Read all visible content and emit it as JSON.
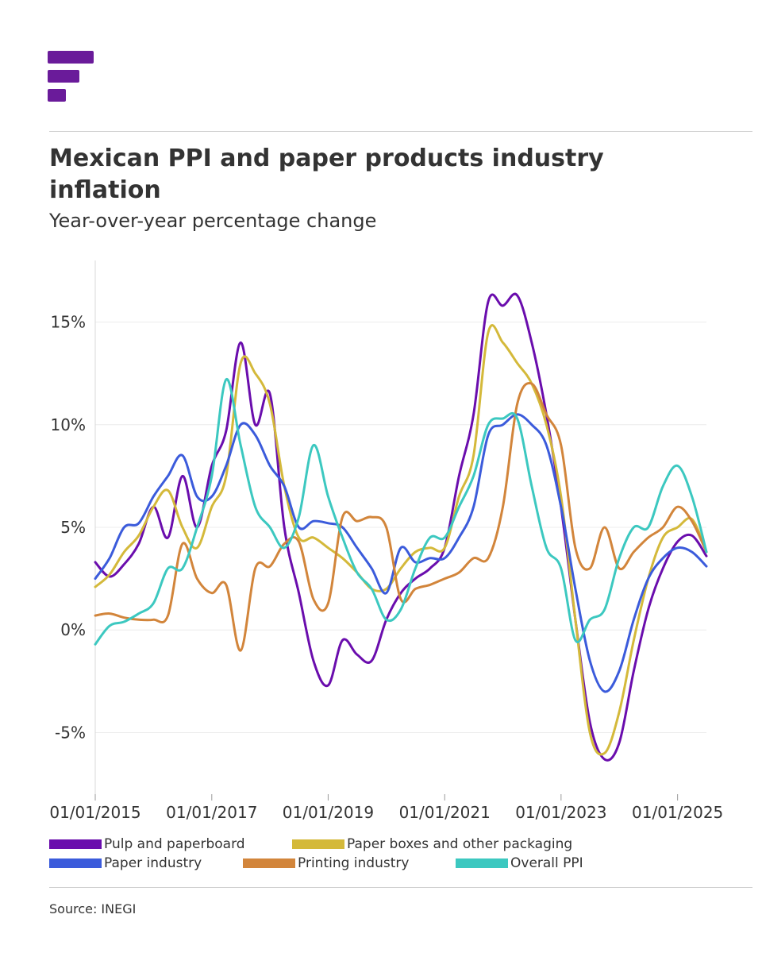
{
  "title": "Mexican PPI and paper products industry inflation",
  "subtitle": "Year-over-year percentage change",
  "source": "Source: INEGI",
  "brand_color": "#6a1b9a",
  "chart_data": {
    "type": "line",
    "title": "Mexican PPI and paper products industry inflation",
    "subtitle": "Year-over-year percentage change",
    "xlabel": "",
    "ylabel": "",
    "x_ticks": [
      "01/01/2015",
      "01/01/2017",
      "01/01/2019",
      "01/01/2021",
      "01/01/2023",
      "01/01/2025"
    ],
    "y_ticks": [
      "15%",
      "10%",
      "5%",
      "0%",
      "-5%"
    ],
    "y_tick_values": [
      15,
      10,
      5,
      0,
      -5
    ],
    "xlim": [
      "2015-01-01",
      "2025-07-01"
    ],
    "ylim": [
      -8,
      18
    ],
    "grid": true,
    "legend_position": "bottom",
    "series": [
      {
        "name": "Pulp and paperboard",
        "color": "#6a0dad",
        "points": [
          [
            "2015-01-01",
            3.3
          ],
          [
            "2015-04-01",
            2.6
          ],
          [
            "2015-07-01",
            3.2
          ],
          [
            "2015-10-01",
            4.2
          ],
          [
            "2016-01-01",
            6.0
          ],
          [
            "2016-04-01",
            4.5
          ],
          [
            "2016-07-01",
            7.5
          ],
          [
            "2016-10-01",
            5.0
          ],
          [
            "2017-01-01",
            8.0
          ],
          [
            "2017-04-01",
            9.7
          ],
          [
            "2017-07-01",
            14.0
          ],
          [
            "2017-10-01",
            10.0
          ],
          [
            "2018-01-01",
            11.5
          ],
          [
            "2018-04-01",
            5.0
          ],
          [
            "2018-07-01",
            1.8
          ],
          [
            "2018-10-01",
            -1.5
          ],
          [
            "2019-01-01",
            -2.7
          ],
          [
            "2019-04-01",
            -0.5
          ],
          [
            "2019-07-01",
            -1.2
          ],
          [
            "2019-10-01",
            -1.5
          ],
          [
            "2020-01-01",
            0.5
          ],
          [
            "2020-04-01",
            1.8
          ],
          [
            "2020-07-01",
            2.5
          ],
          [
            "2020-10-01",
            3.0
          ],
          [
            "2021-01-01",
            4.0
          ],
          [
            "2021-04-01",
            7.5
          ],
          [
            "2021-07-01",
            10.5
          ],
          [
            "2021-10-01",
            16.0
          ],
          [
            "2022-01-01",
            15.8
          ],
          [
            "2022-04-01",
            16.3
          ],
          [
            "2022-07-01",
            14.0
          ],
          [
            "2022-10-01",
            10.5
          ],
          [
            "2023-01-01",
            6.0
          ],
          [
            "2023-04-01",
            0.5
          ],
          [
            "2023-07-01",
            -4.5
          ],
          [
            "2023-10-01",
            -6.3
          ],
          [
            "2024-01-01",
            -5.5
          ],
          [
            "2024-04-01",
            -2.0
          ],
          [
            "2024-07-01",
            1.0
          ],
          [
            "2024-10-01",
            3.0
          ],
          [
            "2025-01-01",
            4.3
          ],
          [
            "2025-04-01",
            4.6
          ],
          [
            "2025-07-01",
            3.6
          ]
        ]
      },
      {
        "name": "Paper boxes and other packaging",
        "color": "#d4b93a",
        "points": [
          [
            "2015-01-01",
            2.1
          ],
          [
            "2015-04-01",
            2.7
          ],
          [
            "2015-07-01",
            3.8
          ],
          [
            "2015-10-01",
            4.6
          ],
          [
            "2016-01-01",
            6.0
          ],
          [
            "2016-04-01",
            6.8
          ],
          [
            "2016-07-01",
            5.0
          ],
          [
            "2016-10-01",
            4.0
          ],
          [
            "2017-01-01",
            6.0
          ],
          [
            "2017-04-01",
            7.5
          ],
          [
            "2017-07-01",
            13.0
          ],
          [
            "2017-10-01",
            12.5
          ],
          [
            "2018-01-01",
            11.0
          ],
          [
            "2018-04-01",
            7.0
          ],
          [
            "2018-07-01",
            4.5
          ],
          [
            "2018-10-01",
            4.5
          ],
          [
            "2019-01-01",
            4.0
          ],
          [
            "2019-04-01",
            3.5
          ],
          [
            "2019-07-01",
            2.8
          ],
          [
            "2019-10-01",
            2.0
          ],
          [
            "2020-01-01",
            2.0
          ],
          [
            "2020-04-01",
            3.0
          ],
          [
            "2020-07-01",
            3.8
          ],
          [
            "2020-10-01",
            4.0
          ],
          [
            "2021-01-01",
            4.0
          ],
          [
            "2021-04-01",
            6.5
          ],
          [
            "2021-07-01",
            8.5
          ],
          [
            "2021-10-01",
            14.5
          ],
          [
            "2022-01-01",
            14.0
          ],
          [
            "2022-04-01",
            13.0
          ],
          [
            "2022-07-01",
            12.0
          ],
          [
            "2022-10-01",
            10.0
          ],
          [
            "2023-01-01",
            6.5
          ],
          [
            "2023-04-01",
            0.5
          ],
          [
            "2023-07-01",
            -5.0
          ],
          [
            "2023-10-01",
            -6.0
          ],
          [
            "2024-01-01",
            -4.0
          ],
          [
            "2024-04-01",
            -0.5
          ],
          [
            "2024-07-01",
            2.5
          ],
          [
            "2024-10-01",
            4.5
          ],
          [
            "2025-01-01",
            5.0
          ],
          [
            "2025-04-01",
            5.4
          ],
          [
            "2025-07-01",
            3.8
          ]
        ]
      },
      {
        "name": "Paper industry",
        "color": "#3b5bdb",
        "points": [
          [
            "2015-01-01",
            2.5
          ],
          [
            "2015-04-01",
            3.5
          ],
          [
            "2015-07-01",
            5.0
          ],
          [
            "2015-10-01",
            5.2
          ],
          [
            "2016-01-01",
            6.5
          ],
          [
            "2016-04-01",
            7.5
          ],
          [
            "2016-07-01",
            8.5
          ],
          [
            "2016-10-01",
            6.5
          ],
          [
            "2017-01-01",
            6.5
          ],
          [
            "2017-04-01",
            8.0
          ],
          [
            "2017-07-01",
            10.0
          ],
          [
            "2017-10-01",
            9.5
          ],
          [
            "2018-01-01",
            8.0
          ],
          [
            "2018-04-01",
            7.0
          ],
          [
            "2018-07-01",
            5.0
          ],
          [
            "2018-10-01",
            5.3
          ],
          [
            "2019-01-01",
            5.2
          ],
          [
            "2019-04-01",
            5.0
          ],
          [
            "2019-07-01",
            4.0
          ],
          [
            "2019-10-01",
            3.0
          ],
          [
            "2020-01-01",
            1.8
          ],
          [
            "2020-04-01",
            4.0
          ],
          [
            "2020-07-01",
            3.3
          ],
          [
            "2020-10-01",
            3.5
          ],
          [
            "2021-01-01",
            3.5
          ],
          [
            "2021-04-01",
            4.5
          ],
          [
            "2021-07-01",
            6.0
          ],
          [
            "2021-10-01",
            9.5
          ],
          [
            "2022-01-01",
            10.0
          ],
          [
            "2022-04-01",
            10.5
          ],
          [
            "2022-07-01",
            10.0
          ],
          [
            "2022-10-01",
            9.0
          ],
          [
            "2023-01-01",
            6.0
          ],
          [
            "2023-04-01",
            2.0
          ],
          [
            "2023-07-01",
            -1.5
          ],
          [
            "2023-10-01",
            -3.0
          ],
          [
            "2024-01-01",
            -2.0
          ],
          [
            "2024-04-01",
            0.5
          ],
          [
            "2024-07-01",
            2.5
          ],
          [
            "2024-10-01",
            3.5
          ],
          [
            "2025-01-01",
            4.0
          ],
          [
            "2025-04-01",
            3.8
          ],
          [
            "2025-07-01",
            3.1
          ]
        ]
      },
      {
        "name": "Printing industry",
        "color": "#d2853b",
        "points": [
          [
            "2015-01-01",
            0.7
          ],
          [
            "2015-04-01",
            0.8
          ],
          [
            "2015-07-01",
            0.6
          ],
          [
            "2015-10-01",
            0.5
          ],
          [
            "2016-01-01",
            0.5
          ],
          [
            "2016-04-01",
            0.7
          ],
          [
            "2016-07-01",
            4.2
          ],
          [
            "2016-10-01",
            2.5
          ],
          [
            "2017-01-01",
            1.8
          ],
          [
            "2017-04-01",
            2.2
          ],
          [
            "2017-07-01",
            -1.0
          ],
          [
            "2017-10-01",
            3.0
          ],
          [
            "2018-01-01",
            3.1
          ],
          [
            "2018-04-01",
            4.2
          ],
          [
            "2018-07-01",
            4.3
          ],
          [
            "2018-10-01",
            1.5
          ],
          [
            "2019-01-01",
            1.3
          ],
          [
            "2019-04-01",
            5.5
          ],
          [
            "2019-07-01",
            5.3
          ],
          [
            "2019-10-01",
            5.5
          ],
          [
            "2020-01-01",
            5.0
          ],
          [
            "2020-04-01",
            1.5
          ],
          [
            "2020-07-01",
            2.0
          ],
          [
            "2020-10-01",
            2.2
          ],
          [
            "2021-01-01",
            2.5
          ],
          [
            "2021-04-01",
            2.8
          ],
          [
            "2021-07-01",
            3.5
          ],
          [
            "2021-10-01",
            3.5
          ],
          [
            "2022-01-01",
            6.0
          ],
          [
            "2022-04-01",
            11.0
          ],
          [
            "2022-07-01",
            12.0
          ],
          [
            "2022-10-01",
            10.5
          ],
          [
            "2023-01-01",
            9.0
          ],
          [
            "2023-04-01",
            4.0
          ],
          [
            "2023-07-01",
            3.0
          ],
          [
            "2023-10-01",
            5.0
          ],
          [
            "2024-01-01",
            3.0
          ],
          [
            "2024-04-01",
            3.8
          ],
          [
            "2024-07-01",
            4.5
          ],
          [
            "2024-10-01",
            5.0
          ],
          [
            "2025-01-01",
            6.0
          ],
          [
            "2025-04-01",
            5.3
          ],
          [
            "2025-07-01",
            3.8
          ]
        ]
      },
      {
        "name": "Overall PPI",
        "color": "#3cc8c0",
        "points": [
          [
            "2015-01-01",
            -0.7
          ],
          [
            "2015-04-01",
            0.2
          ],
          [
            "2015-07-01",
            0.4
          ],
          [
            "2015-10-01",
            0.8
          ],
          [
            "2016-01-01",
            1.3
          ],
          [
            "2016-04-01",
            3.0
          ],
          [
            "2016-07-01",
            3.0
          ],
          [
            "2016-10-01",
            5.0
          ],
          [
            "2017-01-01",
            7.5
          ],
          [
            "2017-04-01",
            12.2
          ],
          [
            "2017-07-01",
            9.0
          ],
          [
            "2017-10-01",
            6.0
          ],
          [
            "2018-01-01",
            5.0
          ],
          [
            "2018-04-01",
            4.0
          ],
          [
            "2018-07-01",
            5.5
          ],
          [
            "2018-10-01",
            9.0
          ],
          [
            "2019-01-01",
            6.5
          ],
          [
            "2019-04-01",
            4.5
          ],
          [
            "2019-07-01",
            2.8
          ],
          [
            "2019-10-01",
            2.0
          ],
          [
            "2020-01-01",
            0.5
          ],
          [
            "2020-04-01",
            1.0
          ],
          [
            "2020-07-01",
            3.0
          ],
          [
            "2020-10-01",
            4.5
          ],
          [
            "2021-01-01",
            4.5
          ],
          [
            "2021-04-01",
            6.0
          ],
          [
            "2021-07-01",
            7.5
          ],
          [
            "2021-10-01",
            10.0
          ],
          [
            "2022-01-01",
            10.3
          ],
          [
            "2022-04-01",
            10.3
          ],
          [
            "2022-07-01",
            7.0
          ],
          [
            "2022-10-01",
            4.0
          ],
          [
            "2023-01-01",
            3.0
          ],
          [
            "2023-04-01",
            -0.5
          ],
          [
            "2023-07-01",
            0.5
          ],
          [
            "2023-10-01",
            1.0
          ],
          [
            "2024-01-01",
            3.5
          ],
          [
            "2024-04-01",
            5.0
          ],
          [
            "2024-07-01",
            5.0
          ],
          [
            "2024-10-01",
            7.0
          ],
          [
            "2025-01-01",
            8.0
          ],
          [
            "2025-04-01",
            6.5
          ],
          [
            "2025-07-01",
            3.8
          ]
        ]
      }
    ]
  }
}
